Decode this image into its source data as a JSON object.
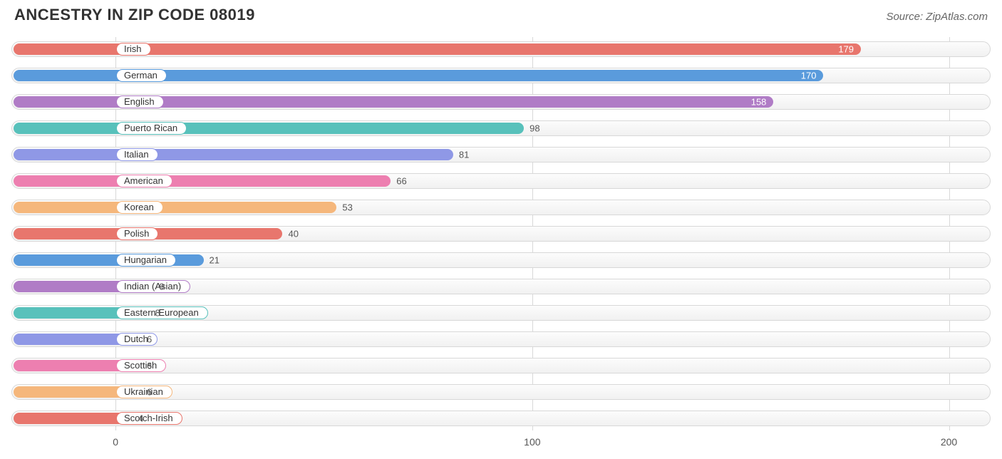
{
  "title": "ANCESTRY IN ZIP CODE 08019",
  "source": "Source: ZipAtlas.com",
  "chart": {
    "type": "bar",
    "x_min": -25,
    "x_max": 210,
    "ticks": [
      0,
      100,
      200
    ],
    "grid_color": "#d8d8d8",
    "track_border": "#d8d8d8",
    "background_color": "#ffffff",
    "label_fontsize": 13,
    "title_fontsize": 22,
    "bars": [
      {
        "label": "Irish",
        "value": 179,
        "color": "#e8766d",
        "text_on_bar": true
      },
      {
        "label": "German",
        "value": 170,
        "color": "#5a9bdc",
        "text_on_bar": true
      },
      {
        "label": "English",
        "value": 158,
        "color": "#b07cc6",
        "text_on_bar": true
      },
      {
        "label": "Puerto Rican",
        "value": 98,
        "color": "#58c1bb",
        "text_on_bar": false
      },
      {
        "label": "Italian",
        "value": 81,
        "color": "#8f98e6",
        "text_on_bar": false
      },
      {
        "label": "American",
        "value": 66,
        "color": "#ed7fb0",
        "text_on_bar": false
      },
      {
        "label": "Korean",
        "value": 53,
        "color": "#f5b77c",
        "text_on_bar": false
      },
      {
        "label": "Polish",
        "value": 40,
        "color": "#e8766d",
        "text_on_bar": false
      },
      {
        "label": "Hungarian",
        "value": 21,
        "color": "#5a9bdc",
        "text_on_bar": false
      },
      {
        "label": "Indian (Asian)",
        "value": 9,
        "color": "#b07cc6",
        "text_on_bar": false
      },
      {
        "label": "Eastern European",
        "value": 8,
        "color": "#58c1bb",
        "text_on_bar": false
      },
      {
        "label": "Dutch",
        "value": 6,
        "color": "#8f98e6",
        "text_on_bar": false
      },
      {
        "label": "Scottish",
        "value": 6,
        "color": "#ed7fb0",
        "text_on_bar": false
      },
      {
        "label": "Ukrainian",
        "value": 6,
        "color": "#f5b77c",
        "text_on_bar": false
      },
      {
        "label": "Scotch-Irish",
        "value": 4,
        "color": "#e8766d",
        "text_on_bar": false
      }
    ]
  }
}
